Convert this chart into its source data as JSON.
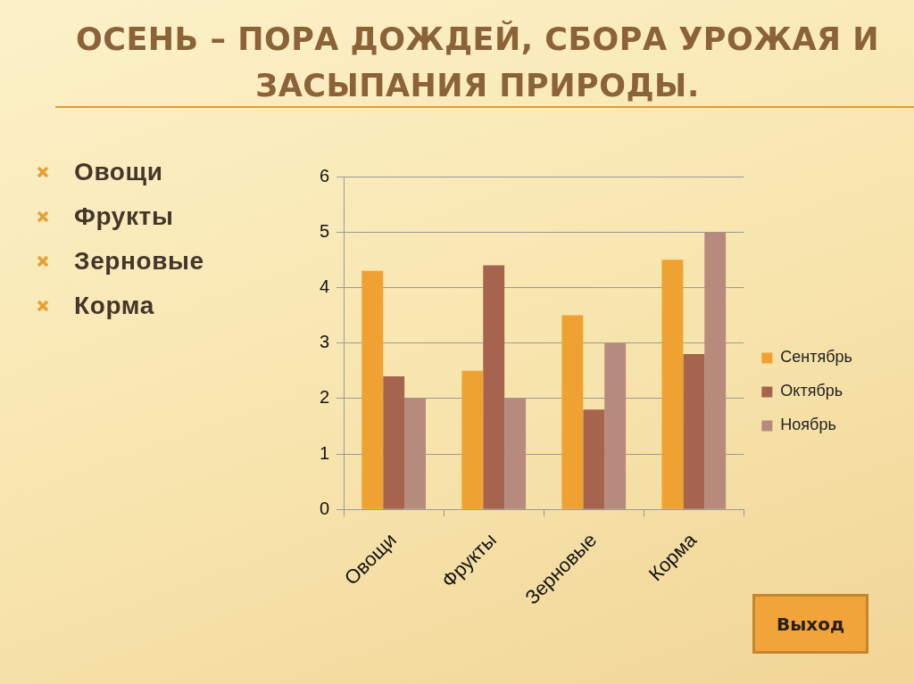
{
  "chart_data": {
    "type": "bar",
    "title": "ОСЕНЬ – ПОРА ДОЖДЕЙ, СБОРА УРОЖАЯ И ЗАСЫПАНИЯ ПРИРОДЫ.",
    "categories": [
      "Овощи",
      "Фрукты",
      "Зерновые",
      "Корма"
    ],
    "series": [
      {
        "name": "Сентябрь",
        "color": "#efa231",
        "values": [
          4.3,
          2.5,
          3.5,
          4.5
        ]
      },
      {
        "name": "Октябрь",
        "color": "#a6644f",
        "values": [
          2.4,
          4.4,
          1.8,
          2.8
        ]
      },
      {
        "name": "Ноябрь",
        "color": "#b68b7e",
        "values": [
          2.0,
          2.0,
          3.0,
          5.0
        ]
      }
    ],
    "ylim": [
      0,
      6
    ],
    "yticks": [
      0,
      1,
      2,
      3,
      4,
      5,
      6
    ],
    "grid": "y",
    "legend": "right",
    "annotations": [
      "Овощи",
      "Фрукты",
      "Зерновые",
      "Корма",
      "Выход"
    ]
  }
}
